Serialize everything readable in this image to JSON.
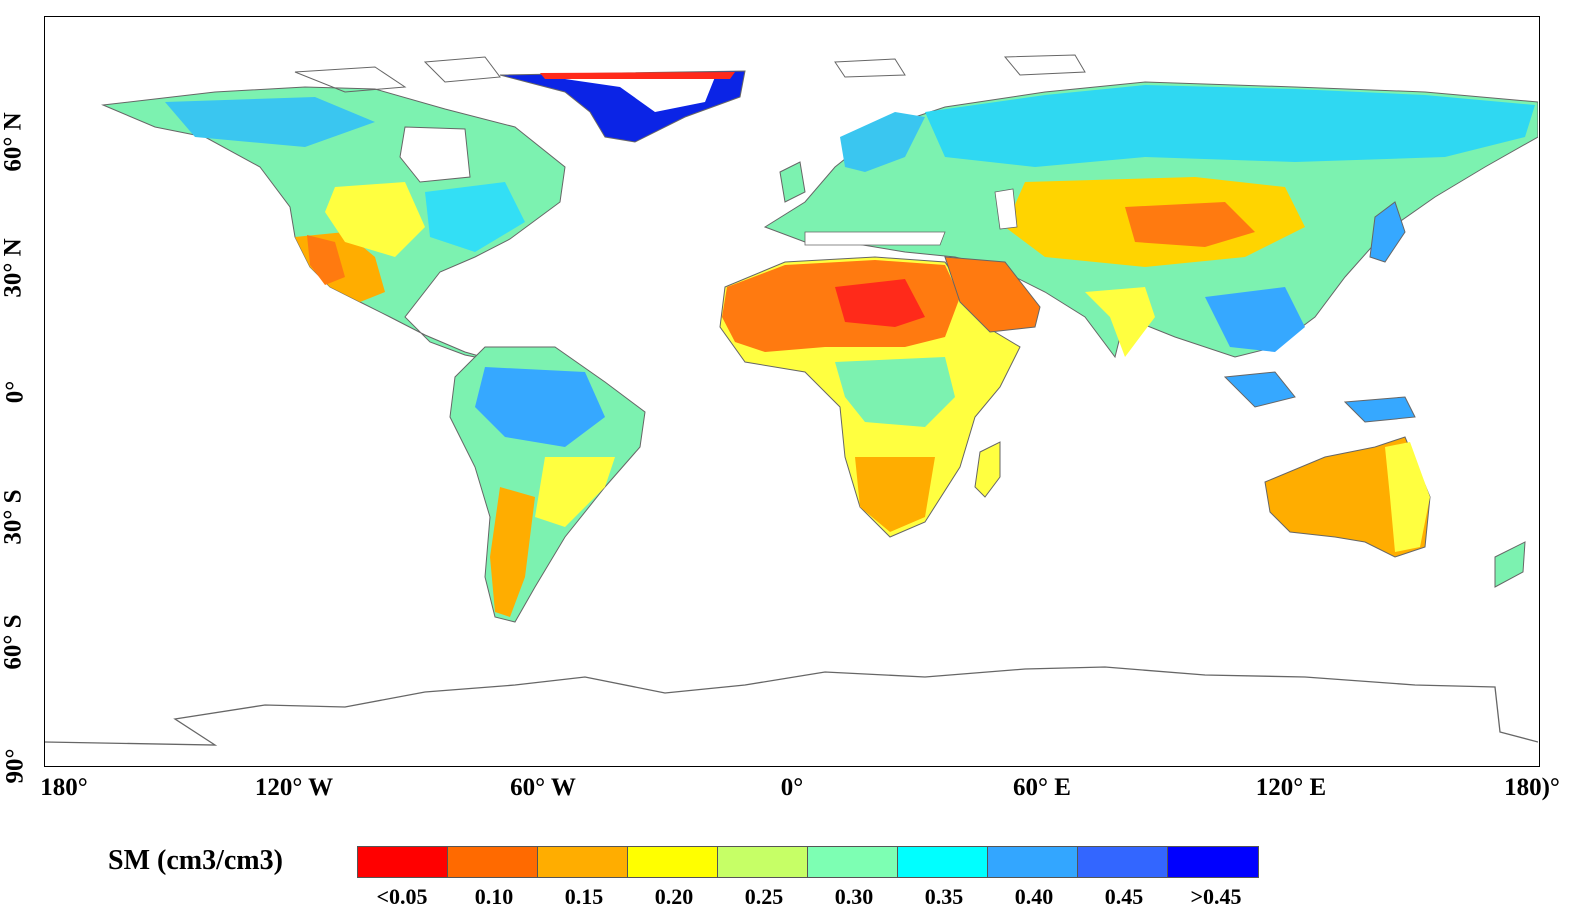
{
  "map": {
    "lat_labels": [
      "60° N",
      "30° N",
      "0°",
      "30° S",
      "60° S",
      "90°"
    ],
    "lon_labels": [
      "180°",
      "120° W",
      "60° W",
      "0°",
      "60° E",
      "120° E",
      "180)°"
    ]
  },
  "legend": {
    "title": "SM (cm3/cm3)",
    "classes": [
      {
        "label": "<0.05",
        "color": "#ff0000"
      },
      {
        "label": "0.10",
        "color": "#ff6a00"
      },
      {
        "label": "0.15",
        "color": "#ffad00"
      },
      {
        "label": "0.20",
        "color": "#ffff00"
      },
      {
        "label": "0.25",
        "color": "#c6ff66"
      },
      {
        "label": "0.30",
        "color": "#7dffb3"
      },
      {
        "label": "0.35",
        "color": "#00ffff"
      },
      {
        "label": "0.40",
        "color": "#33a6ff"
      },
      {
        "label": "0.45",
        "color": "#3366ff"
      },
      {
        "label": ">0.45",
        "color": "#0000ff"
      }
    ]
  }
}
